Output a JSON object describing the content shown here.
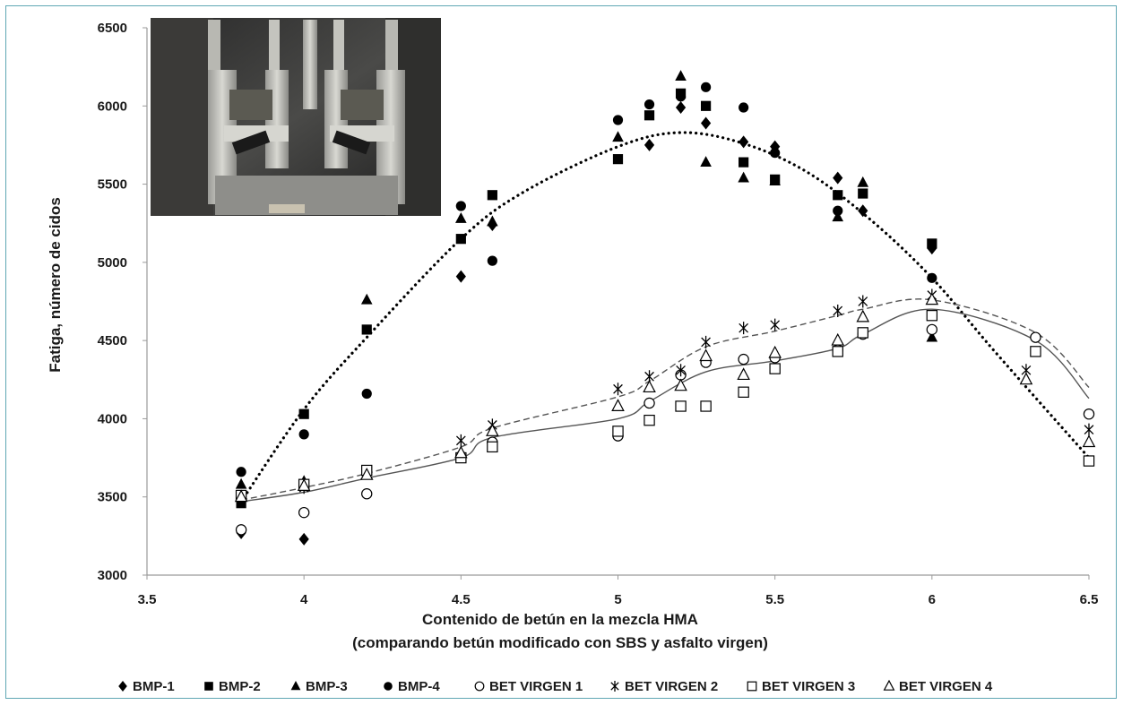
{
  "chart_data": {
    "type": "scatter",
    "title": "",
    "xlabel": "Contenido de betún en la mezcla HMA",
    "xlabel_line2": "(comparando betún modificado  con SBS y asfalto virgen)",
    "ylabel": "Fatiga, número de cidos",
    "xlim": [
      3.5,
      6.5
    ],
    "ylim": [
      3000,
      6500
    ],
    "x_ticks": [
      "3.5",
      "4",
      "4.5",
      "5",
      "5.5",
      "6",
      "6.5"
    ],
    "y_ticks": [
      "3000",
      "3500",
      "4000",
      "4500",
      "5000",
      "5500",
      "6000",
      "6500"
    ],
    "grid": false,
    "legend_position": "bottom",
    "inset_photo": "laboratory fatigue test apparatus photograph (top-left)",
    "series": [
      {
        "name": "BMP-1",
        "marker": "diamond",
        "color": "#000000",
        "points": [
          [
            3.8,
            3270
          ],
          [
            4.0,
            3230
          ],
          [
            4.5,
            4910
          ],
          [
            4.6,
            5240
          ],
          [
            5.1,
            5750
          ],
          [
            5.2,
            5990
          ],
          [
            5.28,
            5890
          ],
          [
            5.4,
            5770
          ],
          [
            5.5,
            5740
          ],
          [
            5.7,
            5540
          ],
          [
            5.78,
            5330
          ],
          [
            6.0,
            5090
          ]
        ]
      },
      {
        "name": "BMP-2",
        "marker": "square-filled",
        "color": "#000000",
        "points": [
          [
            3.8,
            3460
          ],
          [
            4.0,
            4030
          ],
          [
            4.2,
            4570
          ],
          [
            4.5,
            5150
          ],
          [
            4.6,
            5430
          ],
          [
            5.0,
            5660
          ],
          [
            5.1,
            5940
          ],
          [
            5.2,
            6080
          ],
          [
            5.28,
            6000
          ],
          [
            5.4,
            5640
          ],
          [
            5.5,
            5530
          ],
          [
            5.7,
            5430
          ],
          [
            5.78,
            5440
          ],
          [
            6.0,
            5120
          ]
        ]
      },
      {
        "name": "BMP-3",
        "marker": "triangle-filled",
        "color": "#000000",
        "points": [
          [
            3.8,
            3580
          ],
          [
            4.0,
            3600
          ],
          [
            4.2,
            4760
          ],
          [
            4.5,
            5280
          ],
          [
            4.6,
            5260
          ],
          [
            5.0,
            5800
          ],
          [
            5.2,
            6190
          ],
          [
            5.28,
            5640
          ],
          [
            5.4,
            5540
          ],
          [
            5.5,
            5520
          ],
          [
            5.7,
            5290
          ],
          [
            5.78,
            5510
          ],
          [
            6.0,
            4520
          ]
        ]
      },
      {
        "name": "BMP-4",
        "marker": "circle-filled",
        "color": "#000000",
        "points": [
          [
            3.8,
            3660
          ],
          [
            4.0,
            3900
          ],
          [
            4.2,
            4160
          ],
          [
            4.5,
            5360
          ],
          [
            4.6,
            5010
          ],
          [
            5.0,
            5910
          ],
          [
            5.1,
            6010
          ],
          [
            5.2,
            6060
          ],
          [
            5.28,
            6120
          ],
          [
            5.4,
            5990
          ],
          [
            5.5,
            5700
          ],
          [
            5.7,
            5330
          ],
          [
            6.0,
            4900
          ]
        ]
      },
      {
        "name": "BET VIRGEN 1",
        "marker": "circle-open",
        "color": "#000000",
        "points": [
          [
            3.8,
            3290
          ],
          [
            4.0,
            3400
          ],
          [
            4.2,
            3520
          ],
          [
            4.5,
            3760
          ],
          [
            4.6,
            3850
          ],
          [
            5.0,
            3890
          ],
          [
            5.1,
            4100
          ],
          [
            5.2,
            4280
          ],
          [
            5.28,
            4360
          ],
          [
            5.4,
            4380
          ],
          [
            5.5,
            4390
          ],
          [
            5.7,
            4440
          ],
          [
            5.78,
            4540
          ],
          [
            6.0,
            4570
          ],
          [
            6.33,
            4520
          ],
          [
            6.5,
            4030
          ]
        ]
      },
      {
        "name": "BET VIRGEN 2",
        "marker": "star",
        "color": "#000000",
        "points": [
          [
            3.8,
            3480
          ],
          [
            4.0,
            3560
          ],
          [
            4.2,
            3650
          ],
          [
            4.5,
            3860
          ],
          [
            4.6,
            3960
          ],
          [
            5.0,
            4190
          ],
          [
            5.1,
            4270
          ],
          [
            5.2,
            4310
          ],
          [
            5.28,
            4490
          ],
          [
            5.4,
            4580
          ],
          [
            5.5,
            4600
          ],
          [
            5.7,
            4690
          ],
          [
            5.78,
            4750
          ],
          [
            6.0,
            4790
          ],
          [
            6.3,
            4310
          ],
          [
            6.5,
            3930
          ]
        ]
      },
      {
        "name": "BET VIRGEN 3",
        "marker": "square-open",
        "color": "#000000",
        "points": [
          [
            3.8,
            3510
          ],
          [
            4.0,
            3580
          ],
          [
            4.2,
            3670
          ],
          [
            4.5,
            3750
          ],
          [
            4.6,
            3820
          ],
          [
            5.0,
            3920
          ],
          [
            5.1,
            3990
          ],
          [
            5.2,
            4080
          ],
          [
            5.28,
            4080
          ],
          [
            5.4,
            4170
          ],
          [
            5.5,
            4320
          ],
          [
            5.7,
            4430
          ],
          [
            5.78,
            4550
          ],
          [
            6.0,
            4660
          ],
          [
            6.33,
            4430
          ],
          [
            6.5,
            3730
          ]
        ]
      },
      {
        "name": "BET VIRGEN 4",
        "marker": "triangle-open",
        "color": "#000000",
        "points": [
          [
            3.8,
            3500
          ],
          [
            4.0,
            3570
          ],
          [
            4.2,
            3640
          ],
          [
            4.5,
            3780
          ],
          [
            4.6,
            3920
          ],
          [
            5.0,
            4080
          ],
          [
            5.1,
            4200
          ],
          [
            5.2,
            4210
          ],
          [
            5.28,
            4400
          ],
          [
            5.4,
            4280
          ],
          [
            5.5,
            4420
          ],
          [
            5.7,
            4500
          ],
          [
            5.78,
            4650
          ],
          [
            6.0,
            4760
          ],
          [
            6.3,
            4250
          ],
          [
            6.5,
            3850
          ]
        ]
      }
    ],
    "trendlines": [
      {
        "style": "dotted-heavy",
        "color": "#000000",
        "points": [
          [
            3.8,
            3470
          ],
          [
            4.0,
            4060
          ],
          [
            4.2,
            4520
          ],
          [
            4.5,
            5150
          ],
          [
            4.7,
            5450
          ],
          [
            5.0,
            5740
          ],
          [
            5.2,
            5830
          ],
          [
            5.4,
            5760
          ],
          [
            5.6,
            5580
          ],
          [
            5.8,
            5280
          ],
          [
            6.0,
            4900
          ],
          [
            6.2,
            4430
          ],
          [
            6.5,
            3750
          ]
        ]
      },
      {
        "style": "solid",
        "color": "#555555",
        "points": [
          [
            3.8,
            3470
          ],
          [
            4.0,
            3530
          ],
          [
            4.2,
            3620
          ],
          [
            4.5,
            3750
          ],
          [
            4.6,
            3880
          ],
          [
            5.0,
            4000
          ],
          [
            5.1,
            4110
          ],
          [
            5.28,
            4300
          ],
          [
            5.5,
            4370
          ],
          [
            5.7,
            4450
          ],
          [
            5.78,
            4540
          ],
          [
            6.0,
            4700
          ],
          [
            6.33,
            4500
          ],
          [
            6.5,
            4130
          ]
        ]
      },
      {
        "style": "dashed",
        "color": "#555555",
        "points": [
          [
            3.8,
            3480
          ],
          [
            4.0,
            3560
          ],
          [
            4.2,
            3650
          ],
          [
            4.5,
            3820
          ],
          [
            4.6,
            3940
          ],
          [
            5.0,
            4140
          ],
          [
            5.1,
            4240
          ],
          [
            5.28,
            4460
          ],
          [
            5.5,
            4560
          ],
          [
            5.7,
            4660
          ],
          [
            5.78,
            4700
          ],
          [
            6.0,
            4760
          ],
          [
            6.33,
            4550
          ],
          [
            6.5,
            4200
          ]
        ]
      }
    ]
  }
}
